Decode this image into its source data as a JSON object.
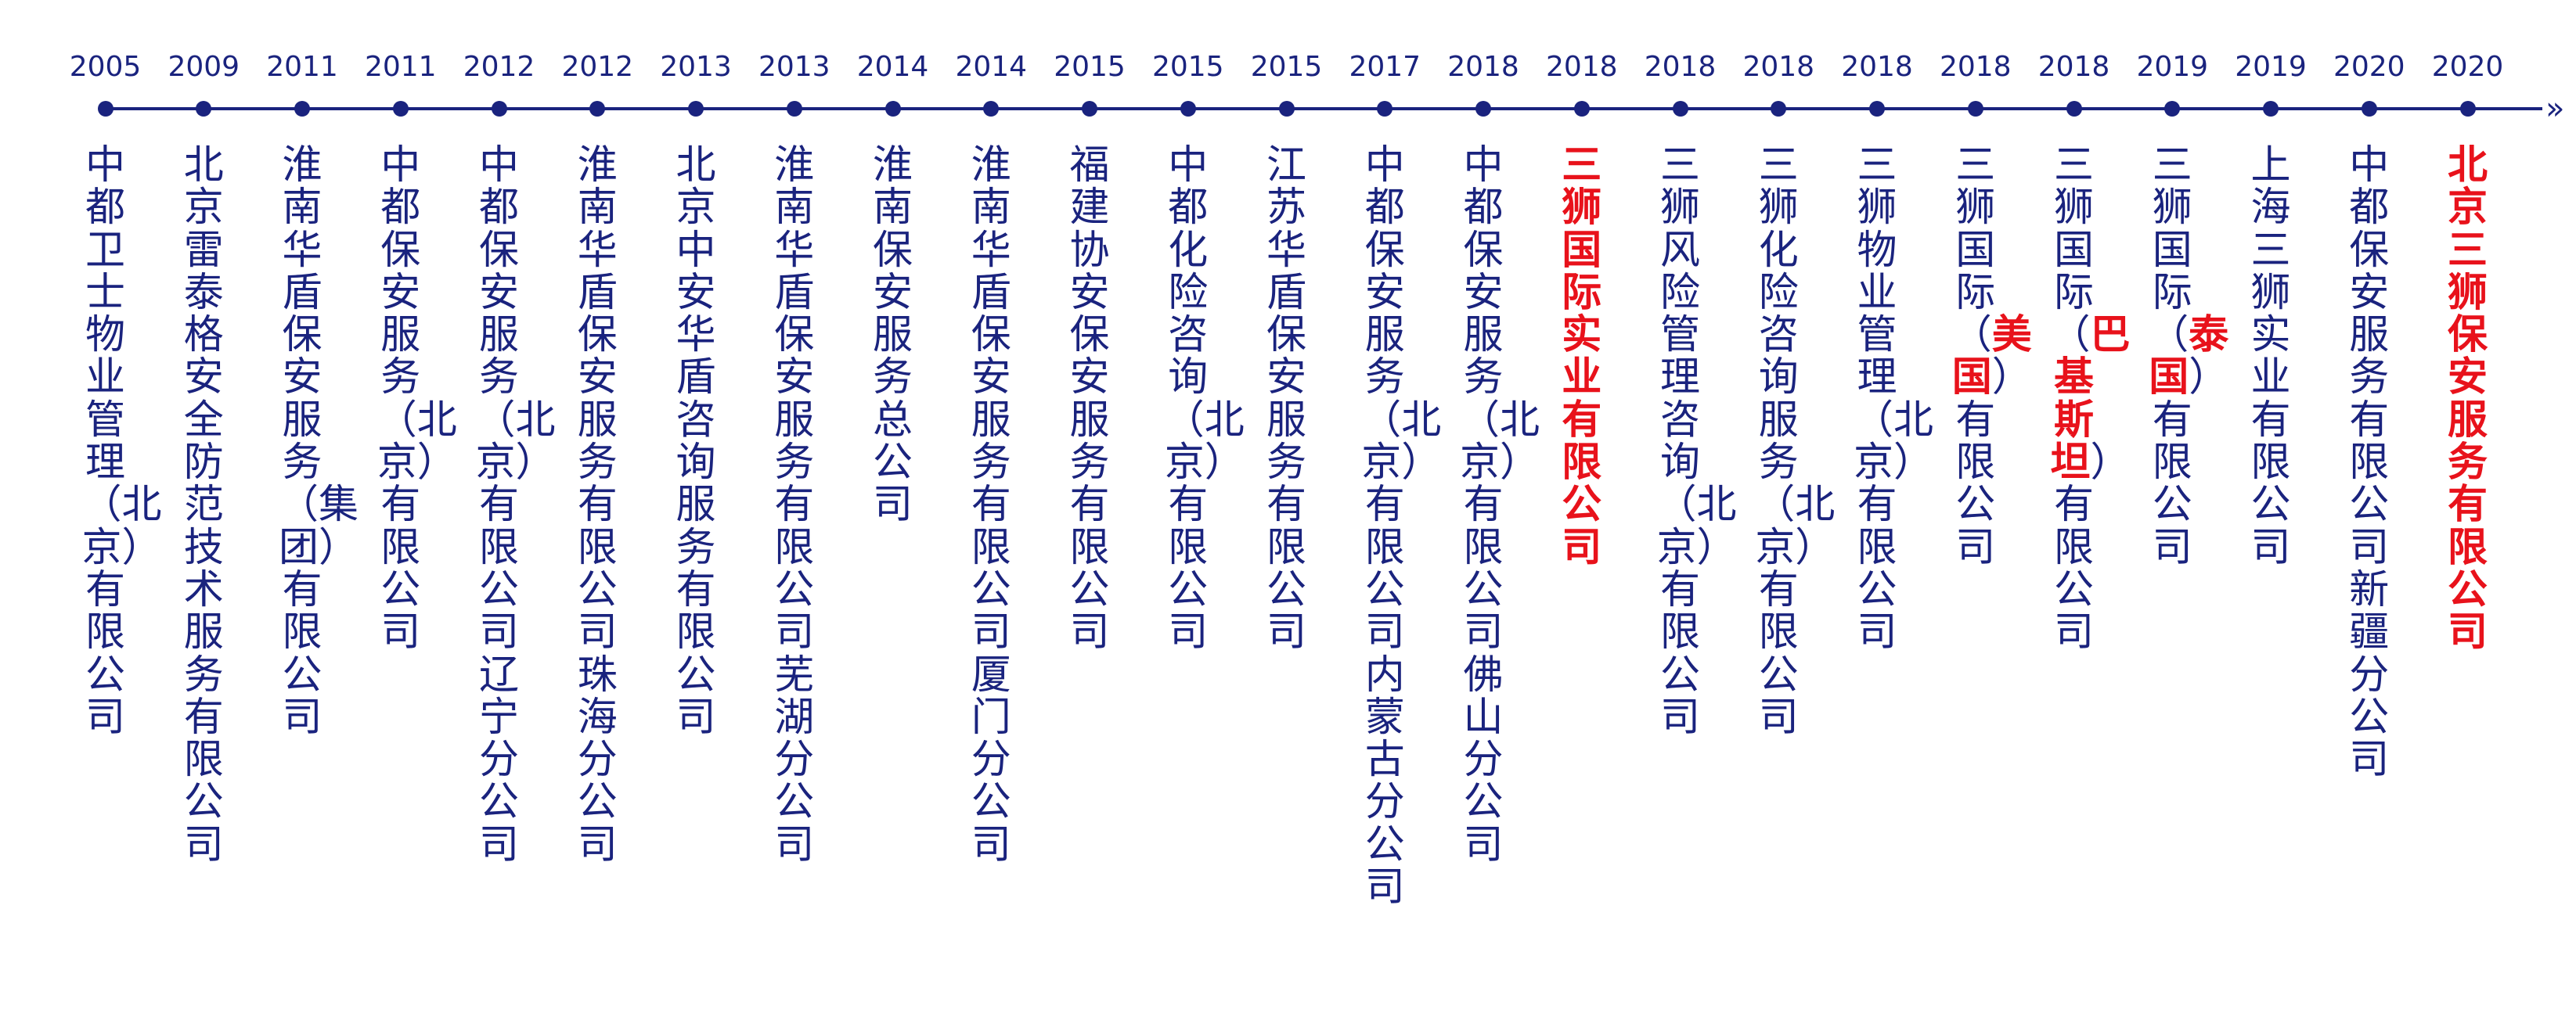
{
  "timeline": {
    "line_color": "#1a237e",
    "highlight_color": "#e8121b",
    "end_glyph": "»",
    "events": [
      {
        "year": "2005",
        "parts": [
          {
            "t": "中都卫士物业管理（北京）有限公司",
            "hl": false
          }
        ]
      },
      {
        "year": "2009",
        "parts": [
          {
            "t": "北京雷泰格安全防范技术服务有限公司",
            "hl": false
          }
        ]
      },
      {
        "year": "2011",
        "parts": [
          {
            "t": "淮南华盾保安服务（集团）有限公司",
            "hl": false
          }
        ]
      },
      {
        "year": "2011",
        "parts": [
          {
            "t": "中都保安服务（北京）有限公司",
            "hl": false
          }
        ]
      },
      {
        "year": "2012",
        "parts": [
          {
            "t": "中都保安服务（北京）有限公司辽宁分公司",
            "hl": false
          }
        ]
      },
      {
        "year": "2012",
        "parts": [
          {
            "t": "淮南华盾保安服务有限公司珠海分公司",
            "hl": false
          }
        ]
      },
      {
        "year": "2013",
        "parts": [
          {
            "t": "北京中安华盾咨询服务有限公司",
            "hl": false
          }
        ]
      },
      {
        "year": "2013",
        "parts": [
          {
            "t": "淮南华盾保安服务有限公司芜湖分公司",
            "hl": false
          }
        ]
      },
      {
        "year": "2014",
        "parts": [
          {
            "t": "淮南保安服务总公司",
            "hl": false
          }
        ]
      },
      {
        "year": "2014",
        "parts": [
          {
            "t": "淮南华盾保安服务有限公司厦门分公司",
            "hl": false
          }
        ]
      },
      {
        "year": "2015",
        "parts": [
          {
            "t": "福建协安保安服务有限公司",
            "hl": false
          }
        ]
      },
      {
        "year": "2015",
        "parts": [
          {
            "t": "中都化险咨询（北京）有限公司",
            "hl": false
          }
        ]
      },
      {
        "year": "2015",
        "parts": [
          {
            "t": "江苏华盾保安服务有限公司",
            "hl": false
          }
        ]
      },
      {
        "year": "2017",
        "parts": [
          {
            "t": "中都保安服务（北京）有限公司内蒙古分公司",
            "hl": false
          }
        ]
      },
      {
        "year": "2018",
        "parts": [
          {
            "t": "中都保安服务（北京）有限公司佛山分公司",
            "hl": false
          }
        ]
      },
      {
        "year": "2018",
        "parts": [
          {
            "t": "三狮国际实业有限公司",
            "hl": true
          }
        ]
      },
      {
        "year": "2018",
        "parts": [
          {
            "t": "三狮风险管理咨询（北京）有限公司",
            "hl": false
          }
        ]
      },
      {
        "year": "2018",
        "parts": [
          {
            "t": "三狮化险咨询服务（北京）有限公司",
            "hl": false
          }
        ]
      },
      {
        "year": "2018",
        "parts": [
          {
            "t": "三狮物业管理（北京）有限公司",
            "hl": false
          }
        ]
      },
      {
        "year": "2018",
        "parts": [
          {
            "t": "三狮国际（",
            "hl": false
          },
          {
            "t": "美国",
            "hl": true
          },
          {
            "t": "）有限公司",
            "hl": false
          }
        ]
      },
      {
        "year": "2018",
        "parts": [
          {
            "t": "三狮国际（",
            "hl": false
          },
          {
            "t": "巴基斯坦",
            "hl": true
          },
          {
            "t": "）有限公司",
            "hl": false
          }
        ]
      },
      {
        "year": "2019",
        "parts": [
          {
            "t": "三狮国际（",
            "hl": false
          },
          {
            "t": "泰国",
            "hl": true
          },
          {
            "t": "）有限公司",
            "hl": false
          }
        ]
      },
      {
        "year": "2019",
        "parts": [
          {
            "t": "上海三狮实业有限公司",
            "hl": false
          }
        ]
      },
      {
        "year": "2020",
        "parts": [
          {
            "t": "中都保安服务有限公司新疆分公司",
            "hl": false
          }
        ]
      },
      {
        "year": "2020",
        "parts": [
          {
            "t": "北京三狮保安服务有限公司",
            "hl": true
          }
        ]
      }
    ]
  }
}
